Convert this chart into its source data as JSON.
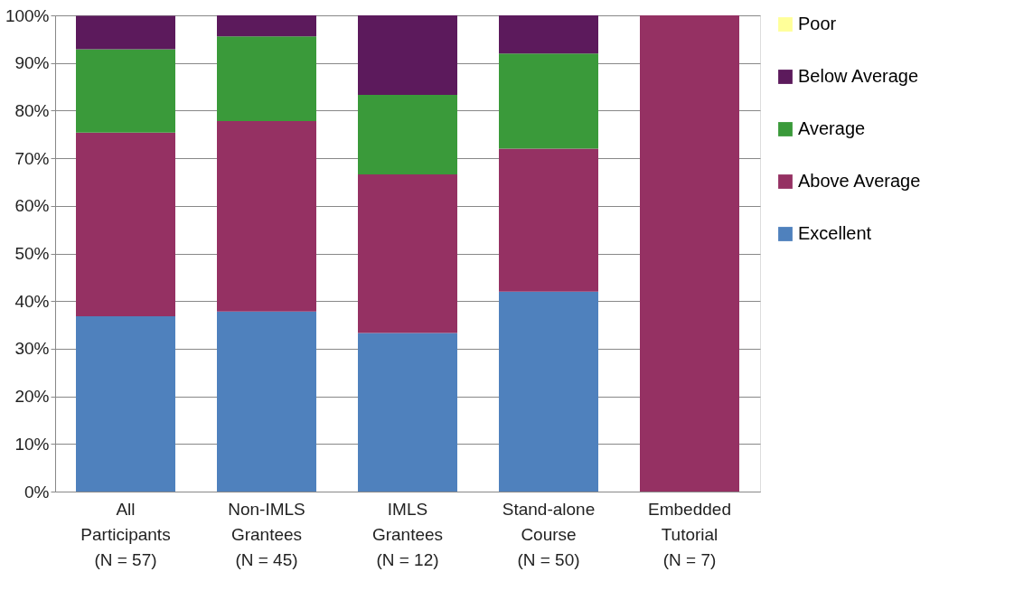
{
  "chart_data": {
    "type": "bar",
    "stacked": true,
    "categories": [
      "All\nParticipants\n(N = 57)",
      "Non-IMLS\nGrantees\n(N = 45)",
      "IMLS\nGrantees\n(N = 12)",
      "Stand-alone\nCourse\n(N = 50)",
      "Embedded\nTutorial\n(N = 7)"
    ],
    "series": [
      {
        "name": "Excellent",
        "color": "#4f81bd",
        "values": [
          36.8,
          37.8,
          33.3,
          42.0,
          0
        ]
      },
      {
        "name": "Above Average",
        "color": "#953163",
        "values": [
          38.6,
          40.0,
          33.3,
          30.0,
          100
        ]
      },
      {
        "name": "Average",
        "color": "#3a9a3a",
        "values": [
          17.5,
          17.8,
          16.7,
          20.0,
          0
        ]
      },
      {
        "name": "Below Average",
        "color": "#5c1a5c",
        "values": [
          7.0,
          4.4,
          16.7,
          8.0,
          0
        ]
      },
      {
        "name": "Poor",
        "color": "#ffff99",
        "values": [
          0,
          0,
          0,
          0,
          0
        ]
      }
    ],
    "ylim": [
      0,
      100
    ],
    "yticks": [
      {
        "value": 0,
        "label": "0%"
      },
      {
        "value": 10,
        "label": "10%"
      },
      {
        "value": 20,
        "label": "20%"
      },
      {
        "value": 30,
        "label": "30%"
      },
      {
        "value": 40,
        "label": "40%"
      },
      {
        "value": 50,
        "label": "50%"
      },
      {
        "value": 60,
        "label": "60%"
      },
      {
        "value": 70,
        "label": "70%"
      },
      {
        "value": 80,
        "label": "80%"
      },
      {
        "value": 90,
        "label": "90%"
      },
      {
        "value": 100,
        "label": "100%"
      }
    ],
    "grid": "y",
    "legend": "right"
  }
}
